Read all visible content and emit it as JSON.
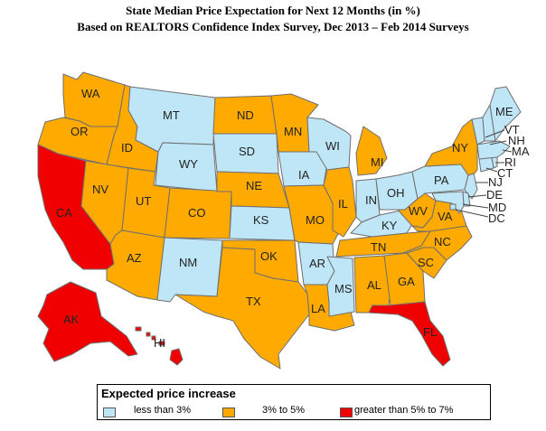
{
  "title_line1": "State Median Price Expectation for Next 12 Months (in %)",
  "title_line2": "Based on REALTORS Confidence Index Survey, Dec 2013 – Feb 2014 Surveys",
  "colors": {
    "less_than_3": "#bfe6f6",
    "three_to_five": "#ffaa00",
    "greater_than_5": "#f00000"
  },
  "legend": {
    "title": "Expected price increase",
    "items": [
      {
        "label": "less than 3%",
        "category": "less_than_3"
      },
      {
        "label": "3% to 5%",
        "category": "three_to_five"
      },
      {
        "label": "greater than 5% to 7%",
        "category": "greater_than_5"
      }
    ]
  },
  "states": {
    "less_than_3": [
      "MT",
      "WY",
      "SD",
      "KS",
      "NM",
      "IA",
      "WI",
      "AR",
      "MS",
      "IN",
      "OH",
      "KY",
      "PA",
      "ME",
      "VT",
      "NH",
      "MA",
      "RI",
      "CT",
      "NJ",
      "DE",
      "MD",
      "DC"
    ],
    "three_to_five": [
      "WA",
      "OR",
      "ID",
      "NV",
      "UT",
      "AZ",
      "CO",
      "ND",
      "NE",
      "OK",
      "TX",
      "MN",
      "MO",
      "LA",
      "IL",
      "MI",
      "TN",
      "AL",
      "GA",
      "SC",
      "NC",
      "VA",
      "WV",
      "NY"
    ],
    "greater_than_5": [
      "CA",
      "AK",
      "HI",
      "FL"
    ]
  },
  "labels": [
    "WA",
    "OR",
    "CA",
    "ID",
    "NV",
    "UT",
    "AZ",
    "MT",
    "WY",
    "CO",
    "NM",
    "ND",
    "SD",
    "NE",
    "KS",
    "OK",
    "TX",
    "MN",
    "IA",
    "MO",
    "AR",
    "LA",
    "WI",
    "IL",
    "MS",
    "MI",
    "IN",
    "OH",
    "KY",
    "TN",
    "AL",
    "GA",
    "FL",
    "SC",
    "NC",
    "VA",
    "WV",
    "PA",
    "NY",
    "ME",
    "VT",
    "NH",
    "MA",
    "RI",
    "CT",
    "NJ",
    "DE",
    "MD",
    "DC",
    "AK",
    "HI"
  ]
}
